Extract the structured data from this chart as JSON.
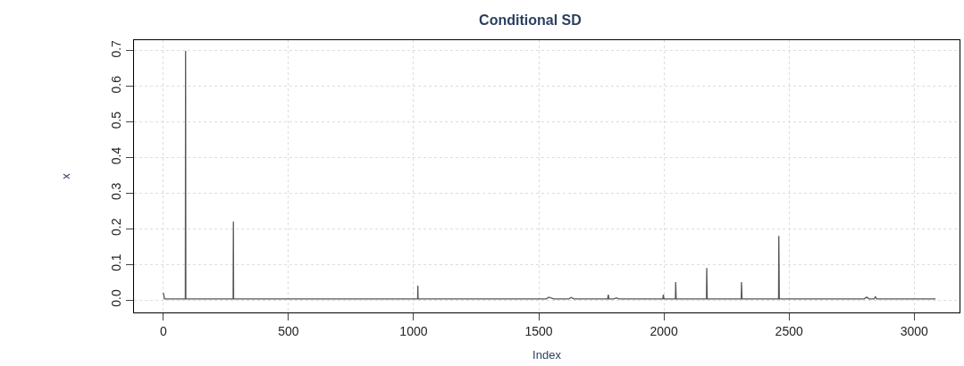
{
  "chart_data": {
    "type": "line",
    "title": "Conditional SD",
    "xlabel": "Index",
    "ylabel": "x",
    "series": [
      {
        "color": "#555555",
        "x": [
          0,
          5,
          88,
          89,
          90,
          279,
          280,
          281,
          1016,
          1017,
          1018,
          1530,
          1540,
          1560,
          1620,
          1630,
          1640,
          1775,
          1778,
          1780,
          1800,
          1810,
          1820,
          1995,
          1998,
          2000,
          2046,
          2047,
          2049,
          2170,
          2171,
          2173,
          2309,
          2310,
          2312,
          2458,
          2459,
          2461,
          2800,
          2810,
          2820,
          2840,
          2845,
          2850,
          3085
        ],
        "values": [
          0.02,
          0.003,
          0.003,
          0.7,
          0.003,
          0.003,
          0.22,
          0.003,
          0.003,
          0.04,
          0.003,
          0.003,
          0.008,
          0.003,
          0.003,
          0.007,
          0.003,
          0.003,
          0.015,
          0.003,
          0.003,
          0.006,
          0.003,
          0.003,
          0.015,
          0.003,
          0.003,
          0.05,
          0.003,
          0.003,
          0.09,
          0.003,
          0.003,
          0.05,
          0.003,
          0.003,
          0.18,
          0.003,
          0.003,
          0.008,
          0.003,
          0.003,
          0.009,
          0.003,
          0.003
        ]
      }
    ],
    "xlim": [
      -117,
      3181
    ],
    "xticks": [
      0,
      500,
      1000,
      1500,
      2000,
      2500,
      3000
    ],
    "ylim": [
      -0.035,
      0.73
    ],
    "yticks": [
      {
        "value": 0,
        "label": "0.0"
      },
      {
        "value": 0.1,
        "label": "0.1"
      },
      {
        "value": 0.2,
        "label": "0.2"
      },
      {
        "value": 0.3,
        "label": "0.3"
      },
      {
        "value": 0.4,
        "label": "0.4"
      },
      {
        "value": 0.5,
        "label": "0.5"
      },
      {
        "value": 0.6,
        "label": "0.6"
      },
      {
        "value": 0.7,
        "label": "0.7"
      }
    ],
    "grid": true,
    "legend": false
  }
}
